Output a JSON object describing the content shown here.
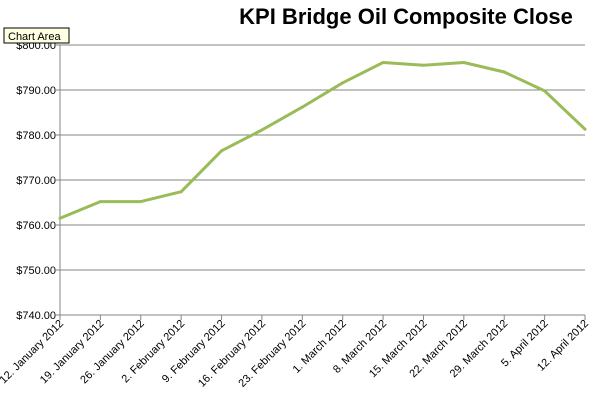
{
  "tooltip": {
    "label": "Chart Area"
  },
  "chart_data": {
    "type": "line",
    "title": "KPI Bridge Oil Composite Close",
    "xlabel": "",
    "ylabel": "",
    "categories": [
      "12. January 2012",
      "19. January 2012",
      "26. January 2012",
      "2. February 2012",
      "9. February 2012",
      "16. February 2012",
      "23. February 2012",
      "1. March 2012",
      "8. March 2012",
      "15. March 2012",
      "22. March 2012",
      "29. March 2012",
      "5. April 2012",
      "12. April 2012"
    ],
    "values": [
      761.5,
      765.2,
      765.2,
      767.4,
      776.5,
      781.1,
      786.2,
      791.6,
      796.1,
      795.5,
      796.1,
      794.0,
      789.8,
      781.3
    ],
    "ylim": [
      740,
      800
    ],
    "yticks": [
      740,
      750,
      760,
      770,
      780,
      790,
      800
    ],
    "ytick_labels": [
      "$740.00",
      "$750.00",
      "$760.00",
      "$770.00",
      "$780.00",
      "$790.00",
      "$800.00"
    ],
    "grid": true,
    "legend": "none",
    "line_color": "#9bbb59"
  }
}
